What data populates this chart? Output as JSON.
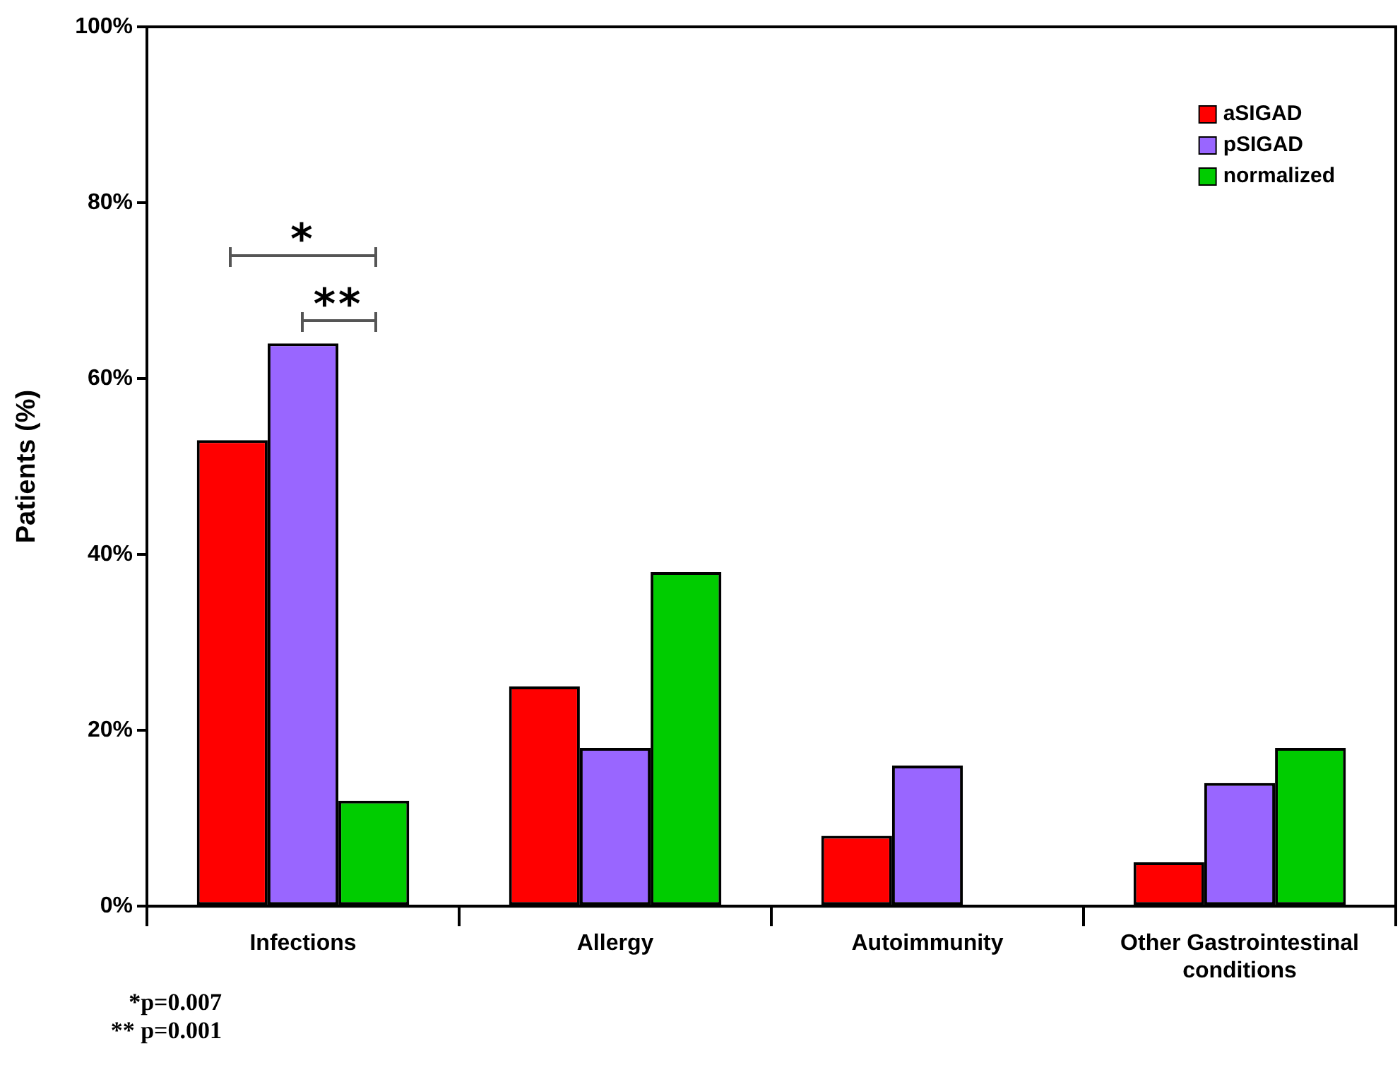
{
  "chart_data": {
    "type": "bar",
    "ylabel": "Patients (%)",
    "categories": [
      "Infections",
      "Allergy",
      "Autoimmunity",
      "Other Gastrointestinal conditions"
    ],
    "series": [
      {
        "name": "aSIGAD",
        "color": "#ff0000",
        "values": [
          53,
          25,
          8,
          5
        ]
      },
      {
        "name": "pSIGAD",
        "color": "#9966ff",
        "values": [
          64,
          18,
          16,
          14
        ]
      },
      {
        "name": "normalized",
        "color": "#00cc00",
        "values": [
          12,
          38,
          0,
          18
        ]
      }
    ],
    "ylim": [
      0,
      100
    ],
    "yticks": [
      {
        "value": 0,
        "label": "0%"
      },
      {
        "value": 20,
        "label": "20%"
      },
      {
        "value": 40,
        "label": "40%"
      },
      {
        "value": 60,
        "label": "60%"
      },
      {
        "value": 80,
        "label": "80%"
      },
      {
        "value": 100,
        "label": "100%"
      }
    ],
    "grid": false,
    "legend": "top right",
    "annotations": [
      "*",
      "**",
      "*p=0.007",
      "** p=0.001"
    ]
  }
}
